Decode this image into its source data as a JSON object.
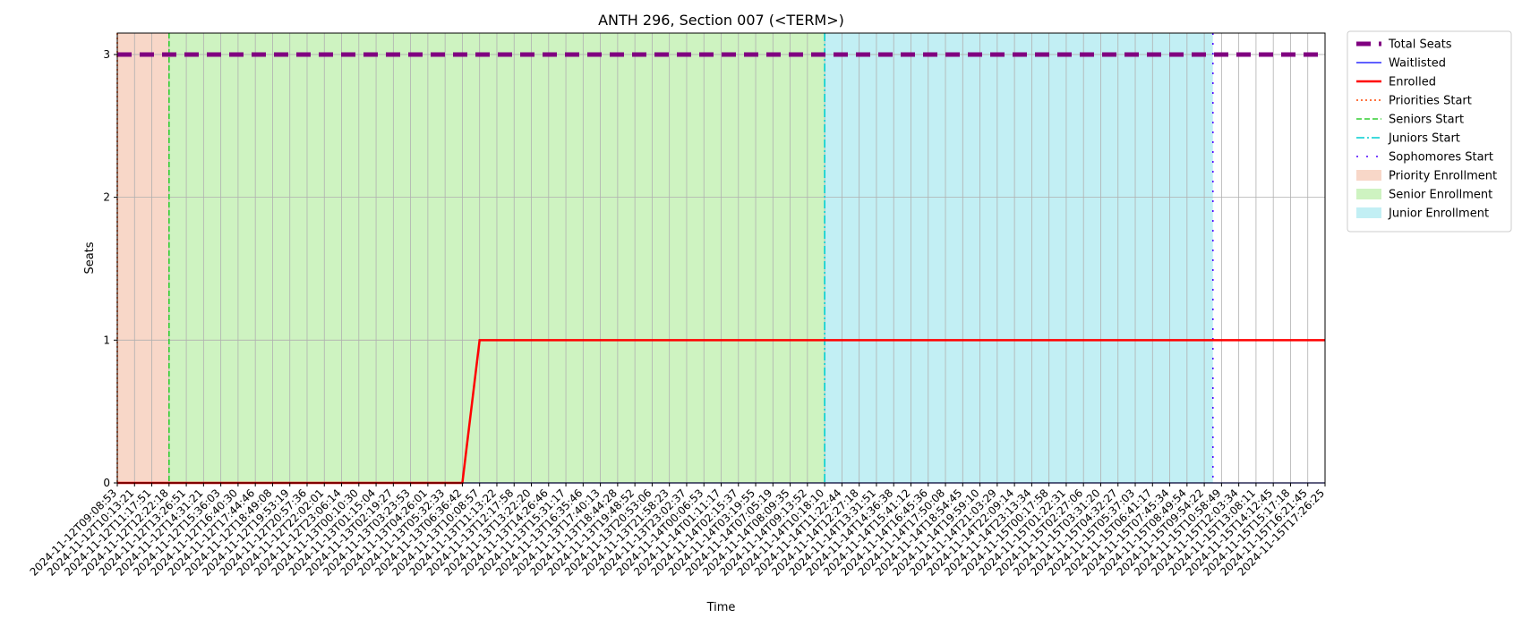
{
  "chart_data": {
    "type": "line",
    "title": "ANTH 296, Section 007 (<TERM>)",
    "xlabel": "Time",
    "ylabel": "Seats",
    "ylim": [
      0,
      3.15
    ],
    "yticks": [
      0,
      1,
      2,
      3
    ],
    "grid": true,
    "legend_position": "outside-top-right",
    "x": [
      "2024-11-12T09:08:53",
      "2024-11-12T10:13:21",
      "2024-11-12T11:17:51",
      "2024-11-12T12:22:18",
      "2024-11-12T13:26:51",
      "2024-11-12T14:31:21",
      "2024-11-12T15:36:03",
      "2024-11-12T16:40:30",
      "2024-11-12T17:44:46",
      "2024-11-12T18:49:08",
      "2024-11-12T19:53:19",
      "2024-11-12T20:57:36",
      "2024-11-12T22:02:01",
      "2024-11-12T23:06:14",
      "2024-11-13T00:10:30",
      "2024-11-13T01:15:04",
      "2024-11-13T02:19:27",
      "2024-11-13T03:23:53",
      "2024-11-13T04:26:01",
      "2024-11-13T05:32:33",
      "2024-11-13T06:36:42",
      "2024-11-13T10:08:57",
      "2024-11-13T11:13:22",
      "2024-11-13T12:17:58",
      "2024-11-13T13:22:20",
      "2024-11-13T14:26:46",
      "2024-11-13T15:31:17",
      "2024-11-13T16:35:46",
      "2024-11-13T17:40:13",
      "2024-11-13T18:44:28",
      "2024-11-13T19:48:52",
      "2024-11-13T20:53:06",
      "2024-11-13T21:58:23",
      "2024-11-13T23:02:37",
      "2024-11-14T00:06:53",
      "2024-11-14T01:11:17",
      "2024-11-14T02:15:37",
      "2024-11-14T03:19:55",
      "2024-11-14T07:05:19",
      "2024-11-14T08:09:35",
      "2024-11-14T09:13:52",
      "2024-11-14T10:18:10",
      "2024-11-14T11:22:44",
      "2024-11-14T12:27:18",
      "2024-11-14T13:31:51",
      "2024-11-14T14:36:38",
      "2024-11-14T15:41:12",
      "2024-11-14T16:45:36",
      "2024-11-14T17:50:08",
      "2024-11-14T18:54:45",
      "2024-11-14T19:59:10",
      "2024-11-14T21:03:29",
      "2024-11-14T22:09:14",
      "2024-11-14T23:13:34",
      "2024-11-15T00:17:58",
      "2024-11-15T01:22:31",
      "2024-11-15T02:27:06",
      "2024-11-15T03:31:20",
      "2024-11-15T04:32:27",
      "2024-11-15T05:37:03",
      "2024-11-15T06:41:17",
      "2024-11-15T07:45:34",
      "2024-11-15T08:49:54",
      "2024-11-15T09:54:22",
      "2024-11-15T10:58:49",
      "2024-11-15T12:03:34",
      "2024-11-15T13:08:11",
      "2024-11-15T14:12:45",
      "2024-11-15T15:17:18",
      "2024-11-15T16:21:45",
      "2024-11-15T17:26:25"
    ],
    "series": [
      {
        "name": "Total Seats",
        "style": "thick-dashed",
        "color": "#800080",
        "values": [
          3,
          3,
          3,
          3,
          3,
          3,
          3,
          3,
          3,
          3,
          3,
          3,
          3,
          3,
          3,
          3,
          3,
          3,
          3,
          3,
          3,
          3,
          3,
          3,
          3,
          3,
          3,
          3,
          3,
          3,
          3,
          3,
          3,
          3,
          3,
          3,
          3,
          3,
          3,
          3,
          3,
          3,
          3,
          3,
          3,
          3,
          3,
          3,
          3,
          3,
          3,
          3,
          3,
          3,
          3,
          3,
          3,
          3,
          3,
          3,
          3,
          3,
          3,
          3,
          3,
          3,
          3,
          3,
          3,
          3,
          3
        ]
      },
      {
        "name": "Waitlisted",
        "style": "solid",
        "color": "#0000ff",
        "values": [
          0,
          0,
          0,
          0,
          0,
          0,
          0,
          0,
          0,
          0,
          0,
          0,
          0,
          0,
          0,
          0,
          0,
          0,
          0,
          0,
          0,
          0,
          0,
          0,
          0,
          0,
          0,
          0,
          0,
          0,
          0,
          0,
          0,
          0,
          0,
          0,
          0,
          0,
          0,
          0,
          0,
          0,
          0,
          0,
          0,
          0,
          0,
          0,
          0,
          0,
          0,
          0,
          0,
          0,
          0,
          0,
          0,
          0,
          0,
          0,
          0,
          0,
          0,
          0,
          0,
          0,
          0,
          0,
          0,
          0,
          0
        ]
      },
      {
        "name": "Enrolled",
        "style": "solid-thick",
        "color": "#ff0000",
        "values": [
          0,
          0,
          0,
          0,
          0,
          0,
          0,
          0,
          0,
          0,
          0,
          0,
          0,
          0,
          0,
          0,
          0,
          0,
          0,
          0,
          0,
          1,
          1,
          1,
          1,
          1,
          1,
          1,
          1,
          1,
          1,
          1,
          1,
          1,
          1,
          1,
          1,
          1,
          1,
          1,
          1,
          1,
          1,
          1,
          1,
          1,
          1,
          1,
          1,
          1,
          1,
          1,
          1,
          1,
          1,
          1,
          1,
          1,
          1,
          1,
          1,
          1,
          1,
          1,
          1,
          1,
          1,
          1,
          1,
          1,
          1
        ]
      }
    ],
    "vlines": [
      {
        "name": "Priorities Start",
        "at": 0,
        "style": "dotted",
        "color": "#ff4500"
      },
      {
        "name": "Seniors Start",
        "at": 3,
        "style": "dashed",
        "color": "#32cd32"
      },
      {
        "name": "Juniors Start",
        "at": 41,
        "style": "dashdot",
        "color": "#00ced1"
      },
      {
        "name": "Sophomores Start",
        "at": 63.5,
        "style": "loose-dotted",
        "color": "#4b00ff"
      }
    ],
    "spans": [
      {
        "name": "Priority Enrollment",
        "from": 0,
        "to": 3,
        "color": "#f5c6b0"
      },
      {
        "name": "Senior Enrollment",
        "from": 3,
        "to": 41,
        "color": "#b9eea6"
      },
      {
        "name": "Junior Enrollment",
        "from": 41,
        "to": 63.5,
        "color": "#a8e8ef"
      }
    ],
    "legend": [
      {
        "label": "Total Seats",
        "kind": "line",
        "style": "thick-dashed",
        "color": "#800080"
      },
      {
        "label": "Waitlisted",
        "kind": "line",
        "style": "solid",
        "color": "#0000ff"
      },
      {
        "label": "Enrolled",
        "kind": "line",
        "style": "solid-thick",
        "color": "#ff0000"
      },
      {
        "label": "Priorities Start",
        "kind": "line",
        "style": "dotted",
        "color": "#ff4500"
      },
      {
        "label": "Seniors Start",
        "kind": "line",
        "style": "dashed",
        "color": "#32cd32"
      },
      {
        "label": "Juniors Start",
        "kind": "line",
        "style": "dashdot",
        "color": "#00ced1"
      },
      {
        "label": "Sophomores Start",
        "kind": "line",
        "style": "loose-dotted",
        "color": "#4b00ff"
      },
      {
        "label": "Priority Enrollment",
        "kind": "patch",
        "color": "#f5c6b0"
      },
      {
        "label": "Senior Enrollment",
        "kind": "patch",
        "color": "#b9eea6"
      },
      {
        "label": "Junior Enrollment",
        "kind": "patch",
        "color": "#a8e8ef"
      }
    ]
  }
}
